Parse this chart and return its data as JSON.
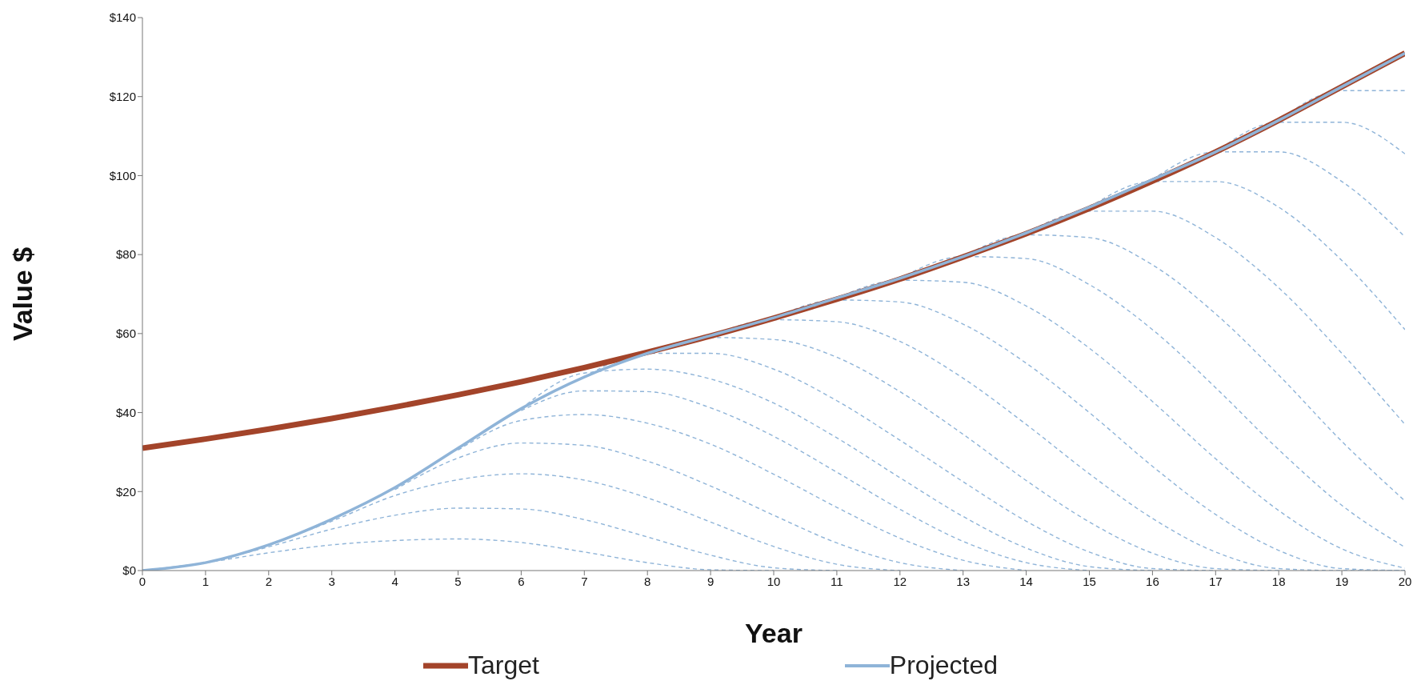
{
  "chart_data": {
    "type": "line",
    "xlabel": "Year",
    "ylabel": "Value $",
    "legend": "bottom",
    "marker": "none",
    "grid": false,
    "x": [
      0,
      1,
      2,
      3,
      4,
      5,
      6,
      7,
      8,
      9,
      10,
      11,
      12,
      13,
      14,
      15,
      16,
      17,
      18,
      19,
      20
    ],
    "xlim": [
      0,
      20
    ],
    "xticks": [
      0,
      1,
      2,
      3,
      4,
      5,
      6,
      7,
      8,
      9,
      10,
      11,
      12,
      13,
      14,
      15,
      16,
      17,
      18,
      19,
      20
    ],
    "ylim": [
      0,
      140
    ],
    "yticks": [
      {
        "value": 0,
        "label": "$0"
      },
      {
        "value": 20,
        "label": "$20"
      },
      {
        "value": 40,
        "label": "$40"
      },
      {
        "value": 60,
        "label": "$60"
      },
      {
        "value": 80,
        "label": "$80"
      },
      {
        "value": 100,
        "label": "$100"
      },
      {
        "value": 120,
        "label": "$120"
      },
      {
        "value": 140,
        "label": "$140"
      }
    ],
    "series": [
      {
        "x": [
          0,
          1,
          2,
          3,
          4,
          5,
          6,
          7,
          8,
          9,
          10
        ],
        "values": [
          0,
          2,
          4.5,
          6.5,
          7.6,
          8,
          7.1,
          4.7,
          2,
          0.2,
          0
        ],
        "color": "#8fb4d8",
        "line_style": "dashed"
      },
      {
        "x": [
          1,
          2,
          3,
          4,
          5,
          6,
          7,
          8,
          9,
          10,
          11
        ],
        "values": [
          2,
          6,
          10.5,
          14,
          15.8,
          15.6,
          12.9,
          8.5,
          3.9,
          0.7,
          0
        ],
        "color": "#8fb4d8",
        "line_style": "dashed"
      },
      {
        "x": [
          2,
          3,
          4,
          5,
          6,
          7,
          8,
          9,
          10,
          11,
          12
        ],
        "values": [
          6.5,
          12.5,
          19,
          23,
          24.5,
          22.9,
          18.4,
          12.3,
          6.1,
          1.6,
          0
        ],
        "color": "#8fb4d8",
        "line_style": "dashed"
      },
      {
        "x": [
          4,
          5,
          6,
          7,
          8,
          9,
          10,
          11,
          12,
          13
        ],
        "values": [
          20.5,
          28.5,
          32.3,
          31.7,
          27.7,
          21.4,
          14,
          7,
          2,
          0
        ],
        "color": "#8fb4d8",
        "line_style": "dashed"
      },
      {
        "x": [
          5,
          6,
          7,
          8,
          9,
          10,
          11,
          12,
          13,
          14
        ],
        "values": [
          30.5,
          38,
          39.5,
          37.3,
          32,
          24.4,
          16,
          8.2,
          2.6,
          0
        ],
        "color": "#8fb4d8",
        "line_style": "dashed"
      },
      {
        "x": [
          6,
          7,
          8,
          9,
          10,
          11,
          12,
          13,
          14,
          15
        ],
        "values": [
          40.5,
          45.5,
          45.3,
          41.2,
          34,
          24.9,
          15.5,
          7.4,
          2,
          0
        ],
        "color": "#8fb4d8",
        "line_style": "dashed"
      },
      {
        "x": [
          6,
          7,
          8,
          9,
          10,
          11,
          12,
          13,
          14,
          15,
          16
        ],
        "values": [
          41,
          50,
          51,
          48.5,
          42.4,
          33.6,
          23.5,
          13.7,
          5.7,
          1,
          0
        ],
        "color": "#8fb4d8",
        "line_style": "dashed"
      },
      {
        "x": [
          7,
          8,
          9,
          10,
          11,
          12,
          13,
          14,
          15,
          16,
          17
        ],
        "values": [
          49,
          55,
          55,
          51,
          43,
          33,
          22.5,
          12.5,
          4.7,
          0.5,
          0
        ],
        "color": "#8fb4d8",
        "line_style": "dashed"
      },
      {
        "x": [
          8,
          9,
          10,
          11,
          12,
          13,
          14,
          15,
          16,
          17,
          18
        ],
        "values": [
          55,
          59,
          58.5,
          54,
          45.3,
          34.5,
          22.8,
          12.3,
          4.4,
          0.5,
          0
        ],
        "color": "#8fb4d8",
        "line_style": "dashed"
      },
      {
        "x": [
          9,
          10,
          11,
          12,
          13,
          14,
          15,
          16,
          17,
          18,
          19,
          20
        ],
        "values": [
          59.5,
          63.5,
          63,
          58,
          48.7,
          37,
          24.5,
          13.2,
          4.7,
          0.5,
          0,
          0
        ],
        "color": "#8fb4d8",
        "line_style": "dashed"
      },
      {
        "x": [
          10,
          11,
          12,
          13,
          14,
          15,
          16,
          17,
          18,
          19,
          20
        ],
        "values": [
          64,
          68.5,
          68,
          62.4,
          52.5,
          40,
          26.4,
          14.2,
          5.1,
          0.5,
          0
        ],
        "color": "#8fb4d8",
        "line_style": "dashed"
      },
      {
        "x": [
          11,
          12,
          13,
          14,
          15,
          16,
          17,
          18,
          19,
          20
        ],
        "values": [
          69,
          73.5,
          73,
          67,
          56.3,
          42.8,
          28.3,
          15.2,
          5.5,
          0.6
        ],
        "color": "#8fb4d8",
        "line_style": "dashed"
      },
      {
        "x": [
          12,
          13,
          14,
          15,
          16,
          17,
          18,
          19,
          20
        ],
        "values": [
          74,
          79.5,
          79,
          72.4,
          61,
          46.3,
          30.6,
          16.5,
          5.9
        ],
        "color": "#8fb4d8",
        "line_style": "dashed"
      },
      {
        "x": [
          13,
          14,
          15,
          16,
          17,
          18,
          19,
          20
        ],
        "values": [
          79.5,
          85,
          84.3,
          77.4,
          65,
          49.5,
          32.7,
          17.6
        ],
        "color": "#8fb4d8",
        "line_style": "dashed"
      },
      {
        "x": [
          14,
          15,
          16,
          17,
          18,
          19,
          20
        ],
        "values": [
          85.5,
          91,
          91,
          84.3,
          71.6,
          55,
          37
        ],
        "color": "#8fb4d8",
        "line_style": "dashed"
      },
      {
        "x": [
          15,
          16,
          17,
          18,
          19,
          20
        ],
        "values": [
          92,
          98.5,
          98.5,
          92,
          78.5,
          61
        ],
        "color": "#8fb4d8",
        "line_style": "dashed"
      },
      {
        "x": [
          16,
          17,
          18,
          19,
          20
        ],
        "values": [
          99,
          106,
          106,
          98.5,
          84.5
        ],
        "color": "#8fb4d8",
        "line_style": "dashed"
      },
      {
        "x": [
          17,
          18,
          19,
          20
        ],
        "values": [
          106,
          113.5,
          113.5,
          105.5
        ],
        "color": "#8fb4d8",
        "line_style": "dashed"
      },
      {
        "x": [
          18,
          19,
          20
        ],
        "values": [
          114,
          121.5,
          121.5
        ],
        "color": "#8fb4d8",
        "line_style": "dashed"
      },
      {
        "name": "Target",
        "color": "#a3442a",
        "values": [
          31,
          33.3,
          35.8,
          38.5,
          41.4,
          44.5,
          47.8,
          51.4,
          55.3,
          59.4,
          63.9,
          68.7,
          73.8,
          79.4,
          85.3,
          91.7,
          98.6,
          106,
          114,
          122.5,
          131
        ]
      },
      {
        "name": "Projected",
        "color": "#8fb4d8",
        "values": [
          0,
          2,
          6.5,
          13,
          21,
          31,
          41,
          49,
          55,
          59.5,
          64,
          69,
          74,
          79.5,
          85.5,
          92,
          99,
          106,
          114,
          122.5,
          131
        ]
      }
    ]
  }
}
